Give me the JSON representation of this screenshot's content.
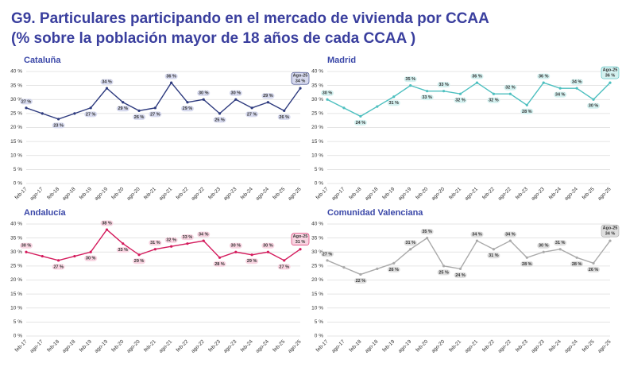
{
  "header": {
    "title": "G9. Particulares participando en el mercado de vivienda por CCAA",
    "subtitle": "(% sobre la población mayor de 18 años de cada CCAA )"
  },
  "chart_data": [
    {
      "type": "line",
      "title": "Cataluña",
      "color": "#2d3a7e",
      "label_bg": "#d6d9ee",
      "grid": true,
      "categories": [
        "feb-17",
        "ago-17",
        "feb-18",
        "ago-18",
        "feb-19",
        "ago-19",
        "feb-20",
        "ago-20",
        "feb-21",
        "ago-21",
        "feb-22",
        "ago-22",
        "feb-23",
        "ago-23",
        "feb-24",
        "ago-24",
        "feb-25",
        "ago-25"
      ],
      "values": [
        27,
        25,
        23,
        25,
        27,
        34,
        29,
        26,
        27,
        36,
        29,
        30,
        25,
        30,
        27,
        29,
        26,
        34
      ],
      "value_labels": [
        "27 %",
        null,
        "23 %",
        null,
        "27 %",
        "34 %",
        "29 %",
        "26 %",
        "27 %",
        "36 %",
        "29 %",
        "30 %",
        "25 %",
        "30 %",
        "27 %",
        "29 %",
        "26 %",
        "34 %"
      ],
      "highlight_label": "Ago-25",
      "ylim": [
        0,
        40
      ],
      "yticks": [
        {
          "value": 0,
          "label": "0 %"
        },
        {
          "value": 5,
          "label": "5 %"
        },
        {
          "value": 10,
          "label": "10 %"
        },
        {
          "value": 15,
          "label": "15 %"
        },
        {
          "value": 20,
          "label": "20 %"
        },
        {
          "value": 25,
          "label": "25 %"
        },
        {
          "value": 30,
          "label": "30 %"
        },
        {
          "value": 35,
          "label": "35 %"
        },
        {
          "value": 40,
          "label": "40 %"
        }
      ]
    },
    {
      "type": "line",
      "title": "Madrid",
      "color": "#4cbfbf",
      "label_bg": "#d4f1f0",
      "grid": true,
      "categories": [
        "feb-17",
        "ago-17",
        "feb-18",
        "ago-18",
        "feb-19",
        "ago-19",
        "feb-20",
        "ago-20",
        "feb-21",
        "ago-21",
        "feb-22",
        "ago-22",
        "feb-23",
        "ago-23",
        "feb-24",
        "ago-24",
        "feb-25",
        "ago-25"
      ],
      "values": [
        30,
        27,
        24,
        27.5,
        31,
        35,
        33,
        33,
        32,
        36,
        32,
        32,
        28,
        36,
        34,
        34,
        30,
        36
      ],
      "value_labels": [
        "30 %",
        null,
        "24 %",
        null,
        "31 %",
        "35 %",
        "33 %",
        "33 %",
        "32 %",
        "36 %",
        "32 %",
        "32 %",
        "28 %",
        "36 %",
        "34 %",
        "34 %",
        "30 %",
        "36 %"
      ],
      "highlight_label": "Ago-25",
      "ylim": [
        0,
        40
      ],
      "yticks": [
        {
          "value": 0,
          "label": "0 %"
        },
        {
          "value": 5,
          "label": "5 %"
        },
        {
          "value": 10,
          "label": "10 %"
        },
        {
          "value": 15,
          "label": "15 %"
        },
        {
          "value": 20,
          "label": "20 %"
        },
        {
          "value": 25,
          "label": "25 %"
        },
        {
          "value": 30,
          "label": "30 %"
        },
        {
          "value": 35,
          "label": "35 %"
        },
        {
          "value": 40,
          "label": "40 %"
        }
      ]
    },
    {
      "type": "line",
      "title": "Andalucía",
      "color": "#d41a5c",
      "label_bg": "#f8d4e1",
      "grid": true,
      "categories": [
        "feb-17",
        "ago-17",
        "feb-18",
        "ago-18",
        "feb-19",
        "ago-19",
        "feb-20",
        "ago-20",
        "feb-21",
        "ago-21",
        "feb-22",
        "ago-22",
        "feb-23",
        "ago-23",
        "feb-24",
        "ago-24",
        "feb-25",
        "ago-25"
      ],
      "values": [
        30,
        28.5,
        27,
        28.5,
        30,
        38,
        33,
        29,
        31,
        32,
        33,
        34,
        28,
        30,
        29,
        30,
        27,
        31
      ],
      "value_labels": [
        "30 %",
        null,
        "27 %",
        null,
        "30 %",
        "38 %",
        "33 %",
        "29 %",
        "31 %",
        "32 %",
        "33 %",
        "34 %",
        "28 %",
        "30 %",
        "29 %",
        "30 %",
        "27 %",
        "31 %"
      ],
      "highlight_label": "Ago-25",
      "ylim": [
        0,
        40
      ],
      "yticks": [
        {
          "value": 0,
          "label": "0 %"
        },
        {
          "value": 5,
          "label": "5 %"
        },
        {
          "value": 10,
          "label": "10 %"
        },
        {
          "value": 15,
          "label": "15 %"
        },
        {
          "value": 20,
          "label": "20 %"
        },
        {
          "value": 25,
          "label": "25 %"
        },
        {
          "value": 30,
          "label": "30 %"
        },
        {
          "value": 35,
          "label": "35 %"
        },
        {
          "value": 40,
          "label": "40 %"
        }
      ]
    },
    {
      "type": "line",
      "title": "Comunidad Valenciana",
      "color": "#aaaaaa",
      "label_bg": "#dedede",
      "grid": true,
      "categories": [
        "feb-17",
        "ago-17",
        "feb-18",
        "ago-18",
        "feb-19",
        "ago-19",
        "feb-20",
        "ago-20",
        "feb-21",
        "ago-21",
        "feb-22",
        "ago-22",
        "feb-23",
        "ago-23",
        "feb-24",
        "ago-24",
        "feb-25",
        "ago-25"
      ],
      "values": [
        27,
        24.5,
        22,
        24,
        26,
        31,
        35,
        25,
        24,
        34,
        31,
        34,
        28,
        30,
        31,
        28,
        26,
        34
      ],
      "value_labels": [
        "27 %",
        null,
        "22 %",
        null,
        "26 %",
        "31 %",
        "35 %",
        "25 %",
        "24 %",
        "34 %",
        "31 %",
        "34 %",
        "28 %",
        "30 %",
        "31 %",
        "28 %",
        "26 %",
        "34 %"
      ],
      "highlight_label": "Ago-25",
      "ylim": [
        0,
        40
      ],
      "yticks": [
        {
          "value": 0,
          "label": "0 %"
        },
        {
          "value": 5,
          "label": "5 %"
        },
        {
          "value": 10,
          "label": "10 %"
        },
        {
          "value": 15,
          "label": "15 %"
        },
        {
          "value": 20,
          "label": "20 %"
        },
        {
          "value": 25,
          "label": "25 %"
        },
        {
          "value": 30,
          "label": "30 %"
        },
        {
          "value": 35,
          "label": "35 %"
        },
        {
          "value": 40,
          "label": "40 %"
        }
      ]
    }
  ]
}
